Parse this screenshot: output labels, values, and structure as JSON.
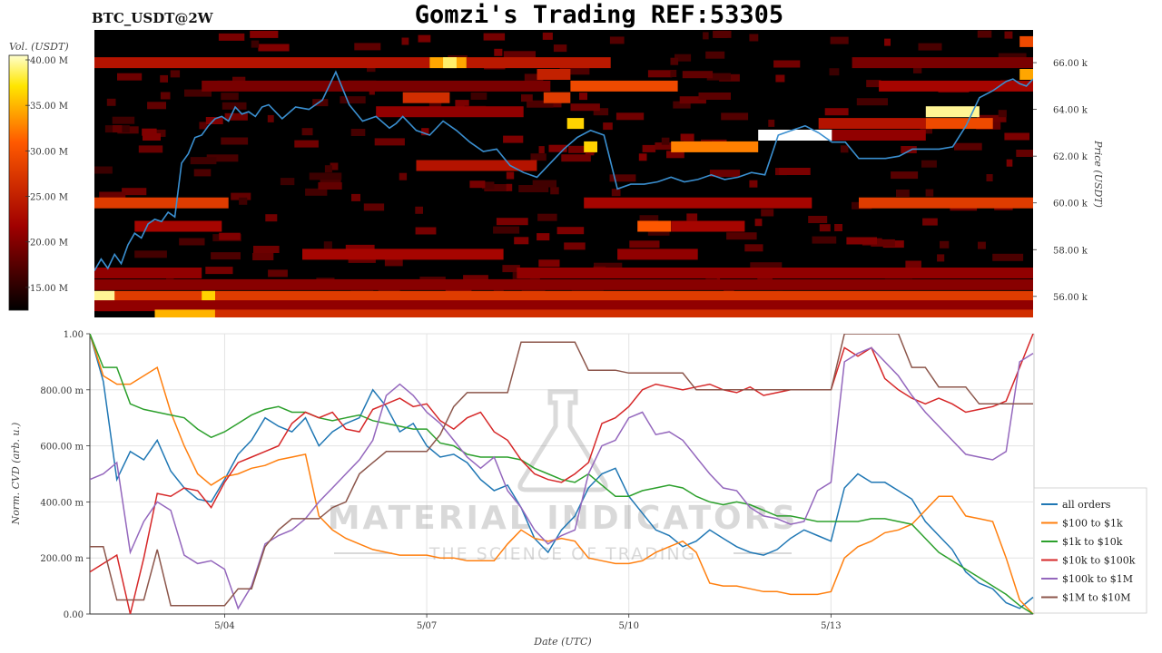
{
  "header": {
    "ticker": "BTC_USDT@2W",
    "title": "Gomzi's Trading REF:53305"
  },
  "watermark": {
    "brand": "MATERIAL INDICATORS",
    "tagline": "THE SCIENCE OF TRADING"
  },
  "colors": {
    "background": "#000000",
    "price_line": "#3a8fd0",
    "heat_low": "#000000",
    "heat_high": "#ffffff"
  },
  "chart_data": [
    {
      "type": "heatmap",
      "title": "",
      "ylabel": "Price (USDT)",
      "colorbar_label": "Vol. (USDT)",
      "colorbar_ticks": [
        "15.00 M",
        "20.00 M",
        "25.00 M",
        "30.00 M",
        "35.00 M",
        "40.00 M"
      ],
      "colorbar_range": [
        12.5,
        40.5
      ],
      "yticks": [
        "56.00 k",
        "58.00 k",
        "60.00 k",
        "62.00 k",
        "64.00 k",
        "66.00 k"
      ],
      "ylim": [
        55100,
        67400
      ],
      "xlim": [
        2.0,
        16.0
      ],
      "price_series": {
        "name": "",
        "x": [
          2.0,
          2.1,
          2.2,
          2.3,
          2.4,
          2.5,
          2.6,
          2.7,
          2.8,
          2.9,
          3.0,
          3.1,
          3.2,
          3.3,
          3.4,
          3.5,
          3.6,
          3.7,
          3.8,
          3.9,
          4.0,
          4.1,
          4.2,
          4.3,
          4.4,
          4.5,
          4.6,
          4.8,
          5.0,
          5.2,
          5.4,
          5.6,
          5.8,
          6.0,
          6.2,
          6.4,
          6.5,
          6.6,
          6.8,
          7.0,
          7.2,
          7.4,
          7.6,
          7.8,
          8.0,
          8.2,
          8.4,
          8.6,
          8.8,
          9.0,
          9.2,
          9.4,
          9.6,
          9.8,
          10.0,
          10.2,
          10.4,
          10.6,
          10.8,
          11.0,
          11.2,
          11.4,
          11.6,
          11.8,
          12.0,
          12.2,
          12.4,
          12.6,
          12.8,
          13.0,
          13.2,
          13.4,
          13.6,
          13.8,
          14.0,
          14.2,
          14.4,
          14.6,
          14.8,
          15.0,
          15.2,
          15.4,
          15.6,
          15.7,
          15.8,
          15.9,
          16.0
        ],
        "y": [
          57100,
          57600,
          57200,
          57800,
          57400,
          58200,
          58700,
          58500,
          59100,
          59300,
          59200,
          59600,
          59400,
          61700,
          62100,
          62800,
          62900,
          63300,
          63600,
          63700,
          63500,
          64100,
          63800,
          63900,
          63700,
          64100,
          64200,
          63600,
          64100,
          64000,
          64400,
          65600,
          64200,
          63500,
          63700,
          63200,
          63400,
          63700,
          63100,
          62900,
          63500,
          63100,
          62600,
          62200,
          62300,
          61600,
          61300,
          61100,
          61700,
          62300,
          62800,
          63100,
          62900,
          60600,
          60800,
          60800,
          60900,
          61100,
          60900,
          61000,
          61200,
          61000,
          61100,
          61300,
          61200,
          62900,
          63100,
          63300,
          63000,
          62600,
          62600,
          61900,
          61900,
          61900,
          62000,
          62300,
          62300,
          62300,
          62400,
          63300,
          64500,
          64800,
          65200,
          65300,
          65100,
          65000,
          65300
        ]
      },
      "bands": [
        {
          "price": 56000,
          "x0": 2.0,
          "x1": 16.0,
          "intensity": 0.55
        },
        {
          "price": 56000,
          "x0": 2.0,
          "x1": 2.3,
          "intensity": 0.95
        },
        {
          "price": 56000,
          "x0": 3.6,
          "x1": 3.8,
          "intensity": 0.85
        },
        {
          "price": 55600,
          "x0": 2.0,
          "x1": 16.0,
          "intensity": 0.3
        },
        {
          "price": 55200,
          "x0": 2.9,
          "x1": 3.8,
          "intensity": 0.8
        },
        {
          "price": 55200,
          "x0": 3.8,
          "x1": 16.0,
          "intensity": 0.5
        },
        {
          "price": 56500,
          "x0": 2.0,
          "x1": 16.0,
          "intensity": 0.28
        },
        {
          "price": 57000,
          "x0": 2.0,
          "x1": 3.6,
          "intensity": 0.3
        },
        {
          "price": 57000,
          "x0": 8.3,
          "x1": 16.0,
          "intensity": 0.3
        },
        {
          "price": 57800,
          "x0": 5.1,
          "x1": 8.1,
          "intensity": 0.35
        },
        {
          "price": 57800,
          "x0": 9.8,
          "x1": 11.0,
          "intensity": 0.3
        },
        {
          "price": 59000,
          "x0": 2.6,
          "x1": 3.9,
          "intensity": 0.35
        },
        {
          "price": 59000,
          "x0": 10.1,
          "x1": 10.6,
          "intensity": 0.65
        },
        {
          "price": 59000,
          "x0": 10.6,
          "x1": 11.7,
          "intensity": 0.35
        },
        {
          "price": 60000,
          "x0": 2.0,
          "x1": 4.0,
          "intensity": 0.55
        },
        {
          "price": 60000,
          "x0": 9.3,
          "x1": 12.7,
          "intensity": 0.35
        },
        {
          "price": 60000,
          "x0": 13.4,
          "x1": 16.0,
          "intensity": 0.55
        },
        {
          "price": 61600,
          "x0": 6.8,
          "x1": 8.6,
          "intensity": 0.4
        },
        {
          "price": 62400,
          "x0": 10.6,
          "x1": 11.9,
          "intensity": 0.72
        },
        {
          "price": 62400,
          "x0": 9.3,
          "x1": 9.5,
          "intensity": 0.85
        },
        {
          "price": 62900,
          "x0": 11.9,
          "x1": 13.0,
          "intensity": 1.0
        },
        {
          "price": 62900,
          "x0": 13.0,
          "x1": 14.4,
          "intensity": 0.3
        },
        {
          "price": 63400,
          "x0": 9.05,
          "x1": 9.3,
          "intensity": 0.85
        },
        {
          "price": 63400,
          "x0": 12.8,
          "x1": 14.4,
          "intensity": 0.4
        },
        {
          "price": 63400,
          "x0": 14.4,
          "x1": 15.4,
          "intensity": 0.6
        },
        {
          "price": 63900,
          "x0": 14.4,
          "x1": 15.2,
          "intensity": 0.95
        },
        {
          "price": 63900,
          "x0": 6.2,
          "x1": 8.4,
          "intensity": 0.3
        },
        {
          "price": 64500,
          "x0": 6.6,
          "x1": 7.3,
          "intensity": 0.5
        },
        {
          "price": 64500,
          "x0": 8.7,
          "x1": 9.1,
          "intensity": 0.55
        },
        {
          "price": 65000,
          "x0": 3.6,
          "x1": 8.8,
          "intensity": 0.25
        },
        {
          "price": 65000,
          "x0": 9.1,
          "x1": 10.7,
          "intensity": 0.6
        },
        {
          "price": 65000,
          "x0": 13.7,
          "x1": 16.0,
          "intensity": 0.35
        },
        {
          "price": 65500,
          "x0": 8.6,
          "x1": 9.1,
          "intensity": 0.45
        },
        {
          "price": 65500,
          "x0": 15.8,
          "x1": 16.0,
          "intensity": 0.78
        },
        {
          "price": 66000,
          "x0": 2.0,
          "x1": 7.0,
          "intensity": 0.4
        },
        {
          "price": 66000,
          "x0": 7.0,
          "x1": 7.55,
          "intensity": 0.78
        },
        {
          "price": 66000,
          "x0": 7.2,
          "x1": 7.4,
          "intensity": 0.93
        },
        {
          "price": 66000,
          "x0": 7.55,
          "x1": 9.7,
          "intensity": 0.42
        },
        {
          "price": 66000,
          "x0": 13.3,
          "x1": 16.0,
          "intensity": 0.25
        },
        {
          "price": 66900,
          "x0": 15.8,
          "x1": 16.0,
          "intensity": 0.6
        }
      ]
    },
    {
      "type": "line",
      "title": "",
      "xlabel": "Date (UTC)",
      "ylabel": "Norm. CVD (arb. u.)",
      "xlim": [
        2.0,
        16.0
      ],
      "ylim": [
        0,
        1
      ],
      "grid": true,
      "legend_position": "bottom-right",
      "xticks": [
        {
          "value": 4,
          "label": "5/04"
        },
        {
          "value": 7,
          "label": "5/07"
        },
        {
          "value": 10,
          "label": "5/10"
        },
        {
          "value": 13,
          "label": "5/13"
        }
      ],
      "yticks": [
        {
          "value": 0,
          "label": "0.00"
        },
        {
          "value": 0.2,
          "label": "200.00 m"
        },
        {
          "value": 0.4,
          "label": "400.00 m"
        },
        {
          "value": 0.6,
          "label": "600.00 m"
        },
        {
          "value": 0.8,
          "label": "800.00 m"
        },
        {
          "value": 1.0,
          "label": "1.00"
        }
      ],
      "x": [
        2.0,
        2.2,
        2.4,
        2.6,
        2.8,
        3.0,
        3.2,
        3.4,
        3.6,
        3.8,
        4.0,
        4.2,
        4.4,
        4.6,
        4.8,
        5.0,
        5.2,
        5.4,
        5.6,
        5.8,
        6.0,
        6.2,
        6.4,
        6.6,
        6.8,
        7.0,
        7.2,
        7.4,
        7.6,
        7.8,
        8.0,
        8.2,
        8.4,
        8.6,
        8.8,
        9.0,
        9.2,
        9.4,
        9.6,
        9.8,
        10.0,
        10.2,
        10.4,
        10.6,
        10.8,
        11.0,
        11.2,
        11.4,
        11.6,
        11.8,
        12.0,
        12.2,
        12.4,
        12.6,
        12.8,
        13.0,
        13.2,
        13.4,
        13.6,
        13.8,
        14.0,
        14.2,
        14.4,
        14.6,
        14.8,
        15.0,
        15.2,
        15.4,
        15.6,
        15.8,
        16.0
      ],
      "series": [
        {
          "name": "all orders",
          "color": "#1f77b4",
          "values": [
            1.0,
            0.83,
            0.48,
            0.58,
            0.55,
            0.62,
            0.51,
            0.45,
            0.41,
            0.4,
            0.48,
            0.57,
            0.62,
            0.7,
            0.67,
            0.65,
            0.7,
            0.6,
            0.65,
            0.68,
            0.7,
            0.8,
            0.74,
            0.65,
            0.68,
            0.6,
            0.56,
            0.57,
            0.54,
            0.48,
            0.44,
            0.46,
            0.38,
            0.27,
            0.22,
            0.3,
            0.35,
            0.45,
            0.5,
            0.52,
            0.42,
            0.36,
            0.3,
            0.28,
            0.24,
            0.26,
            0.3,
            0.27,
            0.24,
            0.22,
            0.21,
            0.23,
            0.27,
            0.3,
            0.28,
            0.26,
            0.45,
            0.5,
            0.47,
            0.47,
            0.44,
            0.41,
            0.33,
            0.28,
            0.23,
            0.15,
            0.11,
            0.09,
            0.04,
            0.02,
            0.06
          ]
        },
        {
          "name": "$100 to $1k",
          "color": "#ff7f0e",
          "values": [
            1.0,
            0.85,
            0.82,
            0.82,
            0.85,
            0.88,
            0.72,
            0.6,
            0.5,
            0.46,
            0.49,
            0.5,
            0.52,
            0.53,
            0.55,
            0.56,
            0.57,
            0.35,
            0.3,
            0.27,
            0.25,
            0.23,
            0.22,
            0.21,
            0.21,
            0.21,
            0.2,
            0.2,
            0.19,
            0.19,
            0.19,
            0.25,
            0.3,
            0.27,
            0.26,
            0.27,
            0.26,
            0.2,
            0.19,
            0.18,
            0.18,
            0.19,
            0.22,
            0.24,
            0.26,
            0.22,
            0.11,
            0.1,
            0.1,
            0.09,
            0.08,
            0.08,
            0.07,
            0.07,
            0.07,
            0.08,
            0.2,
            0.24,
            0.26,
            0.29,
            0.3,
            0.32,
            0.37,
            0.42,
            0.42,
            0.35,
            0.34,
            0.33,
            0.2,
            0.05,
            0.0
          ]
        },
        {
          "name": "$1k to $10k",
          "color": "#2ca02c",
          "values": [
            1.0,
            0.88,
            0.88,
            0.75,
            0.73,
            0.72,
            0.71,
            0.7,
            0.66,
            0.63,
            0.65,
            0.68,
            0.71,
            0.73,
            0.74,
            0.72,
            0.72,
            0.7,
            0.69,
            0.7,
            0.71,
            0.69,
            0.68,
            0.67,
            0.66,
            0.66,
            0.61,
            0.6,
            0.57,
            0.56,
            0.56,
            0.56,
            0.55,
            0.52,
            0.5,
            0.48,
            0.47,
            0.5,
            0.46,
            0.42,
            0.42,
            0.44,
            0.45,
            0.46,
            0.45,
            0.42,
            0.4,
            0.39,
            0.4,
            0.39,
            0.37,
            0.35,
            0.35,
            0.34,
            0.33,
            0.33,
            0.33,
            0.33,
            0.34,
            0.34,
            0.33,
            0.32,
            0.27,
            0.22,
            0.19,
            0.16,
            0.13,
            0.1,
            0.07,
            0.03,
            0.0
          ]
        },
        {
          "name": "$10k to $100k",
          "color": "#d62728",
          "values": [
            0.15,
            0.18,
            0.21,
            0.0,
            0.2,
            0.43,
            0.42,
            0.45,
            0.44,
            0.38,
            0.47,
            0.54,
            0.56,
            0.58,
            0.6,
            0.68,
            0.72,
            0.7,
            0.72,
            0.66,
            0.65,
            0.73,
            0.75,
            0.77,
            0.74,
            0.75,
            0.69,
            0.66,
            0.7,
            0.72,
            0.65,
            0.62,
            0.55,
            0.5,
            0.48,
            0.47,
            0.5,
            0.54,
            0.68,
            0.7,
            0.74,
            0.8,
            0.82,
            0.81,
            0.8,
            0.81,
            0.82,
            0.8,
            0.79,
            0.81,
            0.78,
            0.79,
            0.8,
            0.8,
            0.8,
            0.8,
            0.95,
            0.92,
            0.95,
            0.84,
            0.8,
            0.77,
            0.75,
            0.77,
            0.75,
            0.72,
            0.73,
            0.74,
            0.76,
            0.88,
            1.0
          ]
        },
        {
          "name": "$100k to $1M",
          "color": "#9467bd",
          "values": [
            0.48,
            0.5,
            0.54,
            0.22,
            0.33,
            0.4,
            0.37,
            0.21,
            0.18,
            0.19,
            0.16,
            0.02,
            0.1,
            0.25,
            0.28,
            0.3,
            0.34,
            0.4,
            0.45,
            0.5,
            0.55,
            0.62,
            0.78,
            0.82,
            0.78,
            0.72,
            0.68,
            0.62,
            0.56,
            0.52,
            0.56,
            0.44,
            0.38,
            0.3,
            0.25,
            0.28,
            0.3,
            0.5,
            0.6,
            0.62,
            0.7,
            0.72,
            0.64,
            0.65,
            0.62,
            0.56,
            0.5,
            0.45,
            0.44,
            0.38,
            0.35,
            0.34,
            0.32,
            0.33,
            0.44,
            0.47,
            0.9,
            0.93,
            0.95,
            0.9,
            0.85,
            0.78,
            0.72,
            0.67,
            0.62,
            0.57,
            0.56,
            0.55,
            0.58,
            0.9,
            0.93
          ]
        },
        {
          "name": "$1M to $10M",
          "color": "#8c564b",
          "values": [
            0.24,
            0.24,
            0.05,
            0.05,
            0.05,
            0.23,
            0.03,
            0.03,
            0.03,
            0.03,
            0.03,
            0.09,
            0.09,
            0.24,
            0.3,
            0.34,
            0.34,
            0.34,
            0.38,
            0.4,
            0.5,
            0.54,
            0.58,
            0.58,
            0.58,
            0.58,
            0.64,
            0.74,
            0.79,
            0.79,
            0.79,
            0.79,
            0.97,
            0.97,
            0.97,
            0.97,
            0.97,
            0.87,
            0.87,
            0.87,
            0.86,
            0.86,
            0.86,
            0.86,
            0.86,
            0.8,
            0.8,
            0.8,
            0.8,
            0.8,
            0.8,
            0.8,
            0.8,
            0.8,
            0.8,
            0.8,
            1.0,
            1.0,
            1.0,
            1.0,
            1.0,
            0.88,
            0.88,
            0.81,
            0.81,
            0.81,
            0.75,
            0.75,
            0.75,
            0.75,
            0.75
          ]
        }
      ]
    }
  ]
}
